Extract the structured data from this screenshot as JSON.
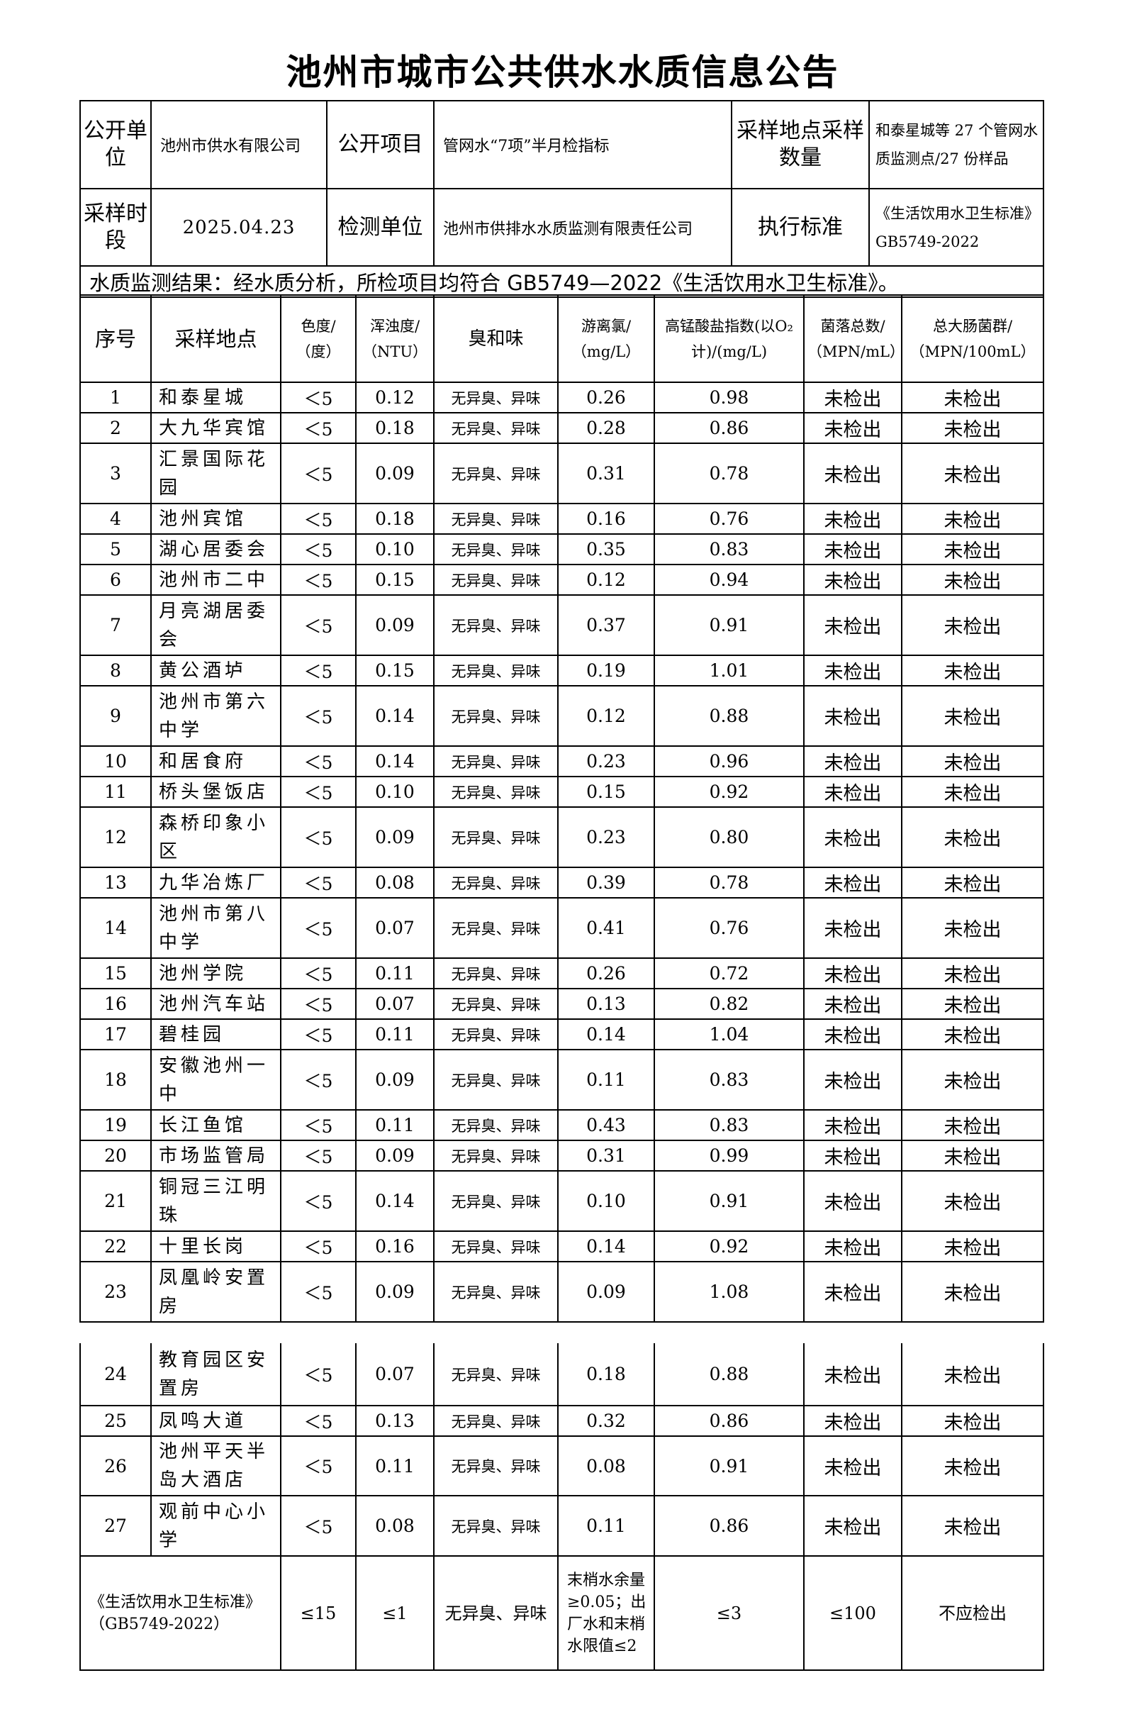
{
  "title": "池州市城市公共供水水质信息公告",
  "header": {
    "publisher_label": "公开单位",
    "publisher": "池州市供水有限公司",
    "item_label": "公开项目",
    "item": "管网水“7项”半月检指标",
    "sites_label": "采样地点采样数量",
    "sites": "和泰星城等 27 个管网水质监测点/27 份样品",
    "period_label": "采样时段",
    "period": "2025.04.23",
    "lab_label": "检测单位",
    "lab": "池州市供排水水质监测有限责任公司",
    "standard_label": "执行标准",
    "standard": "《生活饮用水卫生标准》GB5749-2022",
    "result": "水质监测结果：经水质分析，所检项目均符合 GB5749—2022《生活饮用水卫生标准》。"
  },
  "columns": [
    "序号",
    "采样地点",
    "色度/（度）",
    "浑浊度/（NTU）",
    "臭和味",
    "游离氯/（mg/L）",
    "高锰酸盐指数(以O₂计)/(mg/L)",
    "菌落总数/（MPN/mL）",
    "总大肠菌群/（MPN/100mL）"
  ],
  "rows": [
    [
      "1",
      "和泰星城",
      "＜5",
      "0.12",
      "无异臭、异味",
      "0.26",
      "0.98",
      "未检出",
      "未检出"
    ],
    [
      "2",
      "大九华宾馆",
      "＜5",
      "0.18",
      "无异臭、异味",
      "0.28",
      "0.86",
      "未检出",
      "未检出"
    ],
    [
      "3",
      "汇景国际花园",
      "＜5",
      "0.09",
      "无异臭、异味",
      "0.31",
      "0.78",
      "未检出",
      "未检出"
    ],
    [
      "4",
      "池州宾馆",
      "＜5",
      "0.18",
      "无异臭、异味",
      "0.16",
      "0.76",
      "未检出",
      "未检出"
    ],
    [
      "5",
      "湖心居委会",
      "＜5",
      "0.10",
      "无异臭、异味",
      "0.35",
      "0.83",
      "未检出",
      "未检出"
    ],
    [
      "6",
      "池州市二中",
      "＜5",
      "0.15",
      "无异臭、异味",
      "0.12",
      "0.94",
      "未检出",
      "未检出"
    ],
    [
      "7",
      "月亮湖居委会",
      "＜5",
      "0.09",
      "无异臭、异味",
      "0.37",
      "0.91",
      "未检出",
      "未检出"
    ],
    [
      "8",
      "黄公酒垆",
      "＜5",
      "0.15",
      "无异臭、异味",
      "0.19",
      "1.01",
      "未检出",
      "未检出"
    ],
    [
      "9",
      "池州市第六中学",
      "＜5",
      "0.14",
      "无异臭、异味",
      "0.12",
      "0.88",
      "未检出",
      "未检出"
    ],
    [
      "10",
      "和居食府",
      "＜5",
      "0.14",
      "无异臭、异味",
      "0.23",
      "0.96",
      "未检出",
      "未检出"
    ],
    [
      "11",
      "桥头堡饭店",
      "＜5",
      "0.10",
      "无异臭、异味",
      "0.15",
      "0.92",
      "未检出",
      "未检出"
    ],
    [
      "12",
      "森桥印象小区",
      "＜5",
      "0.09",
      "无异臭、异味",
      "0.23",
      "0.80",
      "未检出",
      "未检出"
    ],
    [
      "13",
      "九华冶炼厂",
      "＜5",
      "0.08",
      "无异臭、异味",
      "0.39",
      "0.78",
      "未检出",
      "未检出"
    ],
    [
      "14",
      "池州市第八中学",
      "＜5",
      "0.07",
      "无异臭、异味",
      "0.41",
      "0.76",
      "未检出",
      "未检出"
    ],
    [
      "15",
      "池州学院",
      "＜5",
      "0.11",
      "无异臭、异味",
      "0.26",
      "0.72",
      "未检出",
      "未检出"
    ],
    [
      "16",
      "池州汽车站",
      "＜5",
      "0.07",
      "无异臭、异味",
      "0.13",
      "0.82",
      "未检出",
      "未检出"
    ],
    [
      "17",
      "碧桂园",
      "＜5",
      "0.11",
      "无异臭、异味",
      "0.14",
      "1.04",
      "未检出",
      "未检出"
    ],
    [
      "18",
      "安徽池州一中",
      "＜5",
      "0.09",
      "无异臭、异味",
      "0.11",
      "0.83",
      "未检出",
      "未检出"
    ],
    [
      "19",
      "长江鱼馆",
      "＜5",
      "0.11",
      "无异臭、异味",
      "0.43",
      "0.83",
      "未检出",
      "未检出"
    ],
    [
      "20",
      "市场监管局",
      "＜5",
      "0.09",
      "无异臭、异味",
      "0.31",
      "0.99",
      "未检出",
      "未检出"
    ],
    [
      "21",
      "铜冠三江明珠",
      "＜5",
      "0.14",
      "无异臭、异味",
      "0.10",
      "0.91",
      "未检出",
      "未检出"
    ],
    [
      "22",
      "十里长岗",
      "＜5",
      "0.16",
      "无异臭、异味",
      "0.14",
      "0.92",
      "未检出",
      "未检出"
    ],
    [
      "23",
      "凤凰岭安置房",
      "＜5",
      "0.09",
      "无异臭、异味",
      "0.09",
      "1.08",
      "未检出",
      "未检出"
    ],
    [
      "24",
      "教育园区安置房",
      "＜5",
      "0.07",
      "无异臭、异味",
      "0.18",
      "0.88",
      "未检出",
      "未检出"
    ],
    [
      "25",
      "凤鸣大道",
      "＜5",
      "0.13",
      "无异臭、异味",
      "0.32",
      "0.86",
      "未检出",
      "未检出"
    ],
    [
      "26",
      "池州平天半岛大酒店",
      "＜5",
      "0.11",
      "无异臭、异味",
      "0.08",
      "0.91",
      "未检出",
      "未检出"
    ],
    [
      "27",
      "观前中心小学",
      "＜5",
      "0.08",
      "无异臭、异味",
      "0.11",
      "0.86",
      "未检出",
      "未检出"
    ]
  ],
  "standard_row": [
    "《生活饮用水卫生标准》（GB5749-2022）",
    "≤15",
    "≤1",
    "无异臭、异味",
    "末梢水余量≥0.05；出厂水和末梢水限值≤2",
    "≤3",
    "≤100",
    "不应检出"
  ]
}
